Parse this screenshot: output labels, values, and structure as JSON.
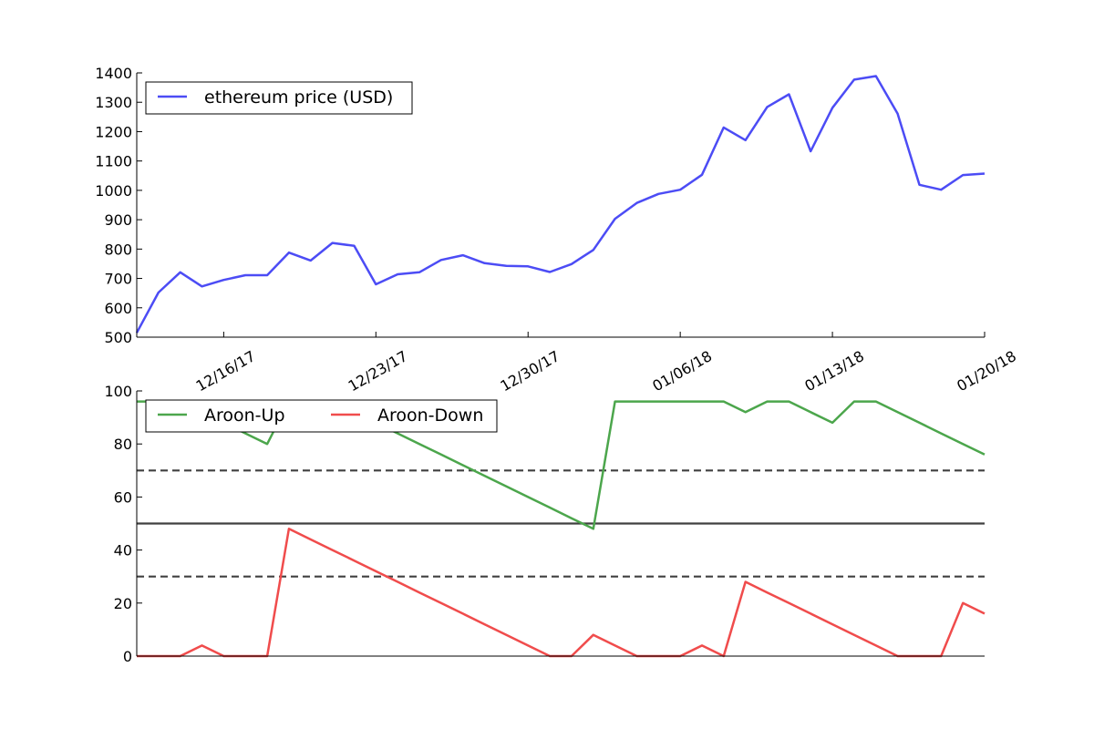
{
  "chart_data": [
    {
      "type": "line",
      "title": "",
      "xlabel": "",
      "ylabel": "",
      "x_tick_labels": [
        "12/16/17",
        "12/23/17",
        "12/30/17",
        "01/06/18",
        "01/13/18",
        "01/20/18"
      ],
      "x_tick_dates": [
        "2017-12-16",
        "2017-12-23",
        "2017-12-30",
        "2018-01-06",
        "2018-01-13",
        "2018-01-20"
      ],
      "xlim": [
        "2017-12-12",
        "2018-01-20"
      ],
      "ylim": [
        500,
        1400
      ],
      "y_ticks": [
        500,
        600,
        700,
        800,
        900,
        1000,
        1100,
        1200,
        1300,
        1400
      ],
      "grid": false,
      "legend_position": "top-left",
      "series": [
        {
          "name": "ethereum price (USD)",
          "color": "#4c4cf5",
          "x": [
            "2017-12-12",
            "2017-12-13",
            "2017-12-14",
            "2017-12-15",
            "2017-12-16",
            "2017-12-17",
            "2017-12-18",
            "2017-12-19",
            "2017-12-20",
            "2017-12-21",
            "2017-12-22",
            "2017-12-23",
            "2017-12-24",
            "2017-12-25",
            "2017-12-26",
            "2017-12-27",
            "2017-12-28",
            "2017-12-29",
            "2017-12-30",
            "2017-12-31",
            "2018-01-01",
            "2018-01-02",
            "2018-01-03",
            "2018-01-04",
            "2018-01-05",
            "2018-01-06",
            "2018-01-07",
            "2018-01-08",
            "2018-01-09",
            "2018-01-10",
            "2018-01-11",
            "2018-01-12",
            "2018-01-13",
            "2018-01-14",
            "2018-01-15",
            "2018-01-16",
            "2018-01-17",
            "2018-01-18",
            "2018-01-19",
            "2018-01-20"
          ],
          "values": [
            515,
            652,
            721,
            673,
            695,
            711,
            711,
            788,
            761,
            821,
            811,
            680,
            714,
            721,
            763,
            779,
            752,
            743,
            741,
            722,
            749,
            797,
            903,
            957,
            988,
            1002,
            1053,
            1214,
            1171,
            1284,
            1327,
            1133,
            1281,
            1377,
            1389,
            1261,
            1019,
            1002,
            1052,
            1057
          ]
        }
      ]
    },
    {
      "type": "line",
      "title": "",
      "xlabel": "",
      "ylabel": "",
      "xlim": [
        "2017-12-12",
        "2018-01-20"
      ],
      "ylim": [
        0,
        100
      ],
      "y_ticks": [
        0,
        20,
        40,
        60,
        80,
        100
      ],
      "grid": false,
      "legend_position": "top-left",
      "reference_lines": [
        {
          "y": 70,
          "style": "dashed"
        },
        {
          "y": 50,
          "style": "solid"
        },
        {
          "y": 30,
          "style": "dashed"
        }
      ],
      "series": [
        {
          "name": "Aroon-Up",
          "color": "#4ca64c",
          "x": [
            "2017-12-12",
            "2017-12-13",
            "2017-12-14",
            "2017-12-15",
            "2017-12-16",
            "2017-12-17",
            "2017-12-18",
            "2017-12-19",
            "2017-12-20",
            "2017-12-21",
            "2017-12-22",
            "2017-12-23",
            "2017-12-24",
            "2017-12-25",
            "2017-12-26",
            "2017-12-27",
            "2017-12-28",
            "2017-12-29",
            "2017-12-30",
            "2017-12-31",
            "2018-01-01",
            "2018-01-02",
            "2018-01-03",
            "2018-01-04",
            "2018-01-05",
            "2018-01-06",
            "2018-01-07",
            "2018-01-08",
            "2018-01-09",
            "2018-01-10",
            "2018-01-11",
            "2018-01-12",
            "2018-01-13",
            "2018-01-14",
            "2018-01-15",
            "2018-01-16",
            "2018-01-17",
            "2018-01-18",
            "2018-01-19",
            "2018-01-20"
          ],
          "values": [
            96,
            96,
            96,
            92,
            88,
            84,
            80,
            96,
            92,
            96,
            92,
            88,
            84,
            80,
            76,
            72,
            68,
            64,
            60,
            56,
            52,
            48,
            96,
            96,
            96,
            96,
            96,
            96,
            92,
            96,
            96,
            92,
            88,
            96,
            96,
            92,
            88,
            84,
            80,
            76
          ]
        },
        {
          "name": "Aroon-Down",
          "color": "#f04c4c",
          "x": [
            "2017-12-12",
            "2017-12-13",
            "2017-12-14",
            "2017-12-15",
            "2017-12-16",
            "2017-12-17",
            "2017-12-18",
            "2017-12-19",
            "2017-12-20",
            "2017-12-21",
            "2017-12-22",
            "2017-12-23",
            "2017-12-24",
            "2017-12-25",
            "2017-12-26",
            "2017-12-27",
            "2017-12-28",
            "2017-12-29",
            "2017-12-30",
            "2017-12-31",
            "2018-01-01",
            "2018-01-02",
            "2018-01-03",
            "2018-01-04",
            "2018-01-05",
            "2018-01-06",
            "2018-01-07",
            "2018-01-08",
            "2018-01-09",
            "2018-01-10",
            "2018-01-11",
            "2018-01-12",
            "2018-01-13",
            "2018-01-14",
            "2018-01-15",
            "2018-01-16",
            "2018-01-17",
            "2018-01-18",
            "2018-01-19",
            "2018-01-20"
          ],
          "values": [
            0,
            0,
            0,
            4,
            0,
            0,
            0,
            48,
            44,
            40,
            36,
            32,
            28,
            24,
            20,
            16,
            12,
            8,
            4,
            0,
            0,
            8,
            4,
            0,
            0,
            0,
            4,
            0,
            28,
            24,
            20,
            16,
            12,
            8,
            4,
            0,
            0,
            0,
            20,
            16
          ]
        }
      ]
    }
  ]
}
